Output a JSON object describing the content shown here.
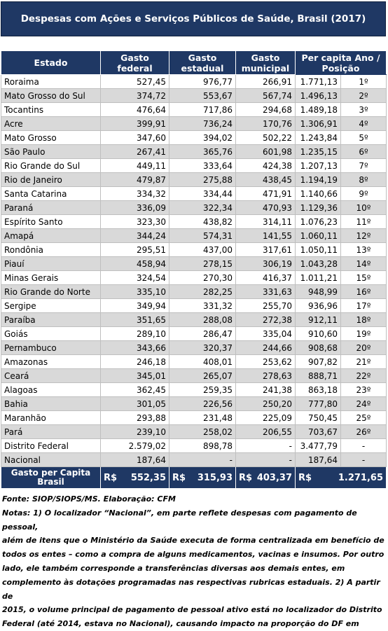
{
  "title": "Despesas com Ações e Serviços Públicos de Saúde, Brasil (2017)",
  "headers": {
    "estado": "Estado",
    "federal": [
      "Gasto",
      "federal"
    ],
    "estadual": [
      "Gasto",
      "estadual"
    ],
    "municipal": [
      "Gasto",
      "municipal"
    ],
    "percapita": [
      "Per capita Ano /",
      "Posição"
    ]
  },
  "rows": [
    {
      "estado": "Roraima",
      "federal": "527,45",
      "estadual": "976,77",
      "municipal": "266,91",
      "percapita": "1.771,13",
      "posicao": "1º"
    },
    {
      "estado": "Mato Grosso do Sul",
      "federal": "374,72",
      "estadual": "553,67",
      "municipal": "567,74",
      "percapita": "1.496,13",
      "posicao": "2º"
    },
    {
      "estado": "Tocantins",
      "federal": "476,64",
      "estadual": "717,86",
      "municipal": "294,68",
      "percapita": "1.489,18",
      "posicao": "3º"
    },
    {
      "estado": "Acre",
      "federal": "399,91",
      "estadual": "736,24",
      "municipal": "170,76",
      "percapita": "1.306,91",
      "posicao": "4º"
    },
    {
      "estado": "Mato Grosso",
      "federal": "347,60",
      "estadual": "394,02",
      "municipal": "502,22",
      "percapita": "1.243,84",
      "posicao": "5º"
    },
    {
      "estado": "São Paulo",
      "federal": "267,41",
      "estadual": "365,76",
      "municipal": "601,98",
      "percapita": "1.235,15",
      "posicao": "6º"
    },
    {
      "estado": "Rio Grande do Sul",
      "federal": "449,11",
      "estadual": "333,64",
      "municipal": "424,38",
      "percapita": "1.207,13",
      "posicao": "7º"
    },
    {
      "estado": "Rio de Janeiro",
      "federal": "479,87",
      "estadual": "275,88",
      "municipal": "438,45",
      "percapita": "1.194,19",
      "posicao": "8º"
    },
    {
      "estado": "Santa Catarina",
      "federal": "334,32",
      "estadual": "334,44",
      "municipal": "471,91",
      "percapita": "1.140,66",
      "posicao": "9º"
    },
    {
      "estado": "Paraná",
      "federal": "336,09",
      "estadual": "322,34",
      "municipal": "470,93",
      "percapita": "1.129,36",
      "posicao": "10º"
    },
    {
      "estado": "Espírito Santo",
      "federal": "323,30",
      "estadual": "438,82",
      "municipal": "314,11",
      "percapita": "1.076,23",
      "posicao": "11º"
    },
    {
      "estado": "Amapá",
      "federal": "344,24",
      "estadual": "574,31",
      "municipal": "141,55",
      "percapita": "1.060,11",
      "posicao": "12º"
    },
    {
      "estado": "Rondônia",
      "federal": "295,51",
      "estadual": "437,00",
      "municipal": "317,61",
      "percapita": "1.050,11",
      "posicao": "13º"
    },
    {
      "estado": "Piauí",
      "federal": "458,94",
      "estadual": "278,15",
      "municipal": "306,19",
      "percapita": "1.043,28",
      "posicao": "14º"
    },
    {
      "estado": "Minas Gerais",
      "federal": "324,54",
      "estadual": "270,30",
      "municipal": "416,37",
      "percapita": "1.011,21",
      "posicao": "15º"
    },
    {
      "estado": "Rio Grande do Norte",
      "federal": "335,10",
      "estadual": "282,25",
      "municipal": "331,63",
      "percapita": "948,99",
      "posicao": "16º"
    },
    {
      "estado": "Sergipe",
      "federal": "349,94",
      "estadual": "331,32",
      "municipal": "255,70",
      "percapita": "936,96",
      "posicao": "17º"
    },
    {
      "estado": "Paraíba",
      "federal": "351,65",
      "estadual": "288,08",
      "municipal": "272,38",
      "percapita": "912,11",
      "posicao": "18º"
    },
    {
      "estado": "Goiás",
      "federal": "289,10",
      "estadual": "286,47",
      "municipal": "335,04",
      "percapita": "910,60",
      "posicao": "19º"
    },
    {
      "estado": "Pernambuco",
      "federal": "343,66",
      "estadual": "320,37",
      "municipal": "244,66",
      "percapita": "908,68",
      "posicao": "20º"
    },
    {
      "estado": "Amazonas",
      "federal": "246,18",
      "estadual": "408,01",
      "municipal": "253,62",
      "percapita": "907,82",
      "posicao": "21º"
    },
    {
      "estado": "Ceará",
      "federal": "345,01",
      "estadual": "265,07",
      "municipal": "278,63",
      "percapita": "888,71",
      "posicao": "22º"
    },
    {
      "estado": "Alagoas",
      "federal": "362,45",
      "estadual": "259,35",
      "municipal": "241,38",
      "percapita": "863,18",
      "posicao": "23º"
    },
    {
      "estado": "Bahia",
      "federal": "301,05",
      "estadual": "226,56",
      "municipal": "250,20",
      "percapita": "777,80",
      "posicao": "24º"
    },
    {
      "estado": "Maranhão",
      "federal": "293,88",
      "estadual": "231,48",
      "municipal": "225,09",
      "percapita": "750,45",
      "posicao": "25º"
    },
    {
      "estado": "Pará",
      "federal": "239,10",
      "estadual": "258,02",
      "municipal": "206,55",
      "percapita": "703,67",
      "posicao": "26º"
    },
    {
      "estado": "Distrito Federal",
      "federal": "2.579,02",
      "estadual": "898,78",
      "municipal": "-",
      "percapita": "3.477,79",
      "posicao": "-"
    },
    {
      "estado": "Nacional",
      "federal": "187,64",
      "estadual": "-",
      "municipal": "-",
      "percapita": "187,64",
      "posicao": "-"
    }
  ],
  "footer": {
    "label": [
      "Gasto per Capita",
      "Brasil"
    ],
    "currency": "R$",
    "federal": "552,35",
    "estadual": "315,93",
    "municipal": "403,37",
    "total": "1.271,65"
  },
  "notes": {
    "source": "Fonte: SIOP/SIOPS/MS. Elaboração: CFM",
    "lines": [
      "Notas: 1) O localizador “Nacional”, em parte reflete despesas com pagamento de pessoal,",
      "além de itens que o Ministério da Saúde executa de forma centralizada em benefício de",
      "todos os entes – como a compra de alguns medicamentos, vacinas e insumos. Por outro",
      "lado, ele também corresponde a transferências diversas aos demais entes, em",
      "complemento às dotações programadas nas respectivas rubricas estaduais. 2) A partir de",
      "2015, o volume principal de pagamento de pessoal ativo está no localizador do Distrito",
      "Federal (até 2014, estava no Nacional), causando impacto na proporção do DF em"
    ]
  }
}
